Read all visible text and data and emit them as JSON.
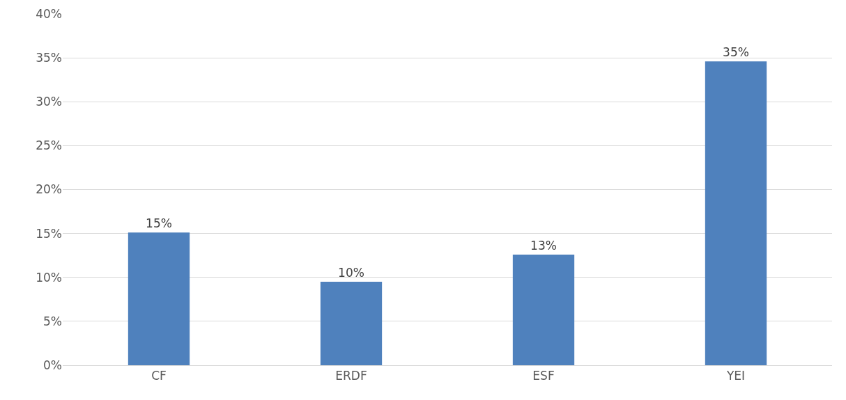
{
  "chart_data": {
    "type": "bar",
    "categories": [
      "CF",
      "ERDF",
      "ESF",
      "YEI"
    ],
    "values": [
      15.1,
      9.5,
      12.6,
      34.6
    ],
    "value_labels": [
      "15%",
      "10%",
      "13%",
      "35%"
    ],
    "color": "#4f81bd",
    "ylim": [
      0,
      40
    ],
    "yticks": [
      {
        "value": 0,
        "label": "0%"
      },
      {
        "value": 5,
        "label": "5%"
      },
      {
        "value": 10,
        "label": "10%"
      },
      {
        "value": 15,
        "label": "15%"
      },
      {
        "value": 20,
        "label": "20%"
      },
      {
        "value": 25,
        "label": "25%"
      },
      {
        "value": 30,
        "label": "30%"
      },
      {
        "value": 35,
        "label": "35%"
      },
      {
        "value": 40,
        "label": "40%"
      }
    ],
    "grid": "y",
    "legend": false
  }
}
